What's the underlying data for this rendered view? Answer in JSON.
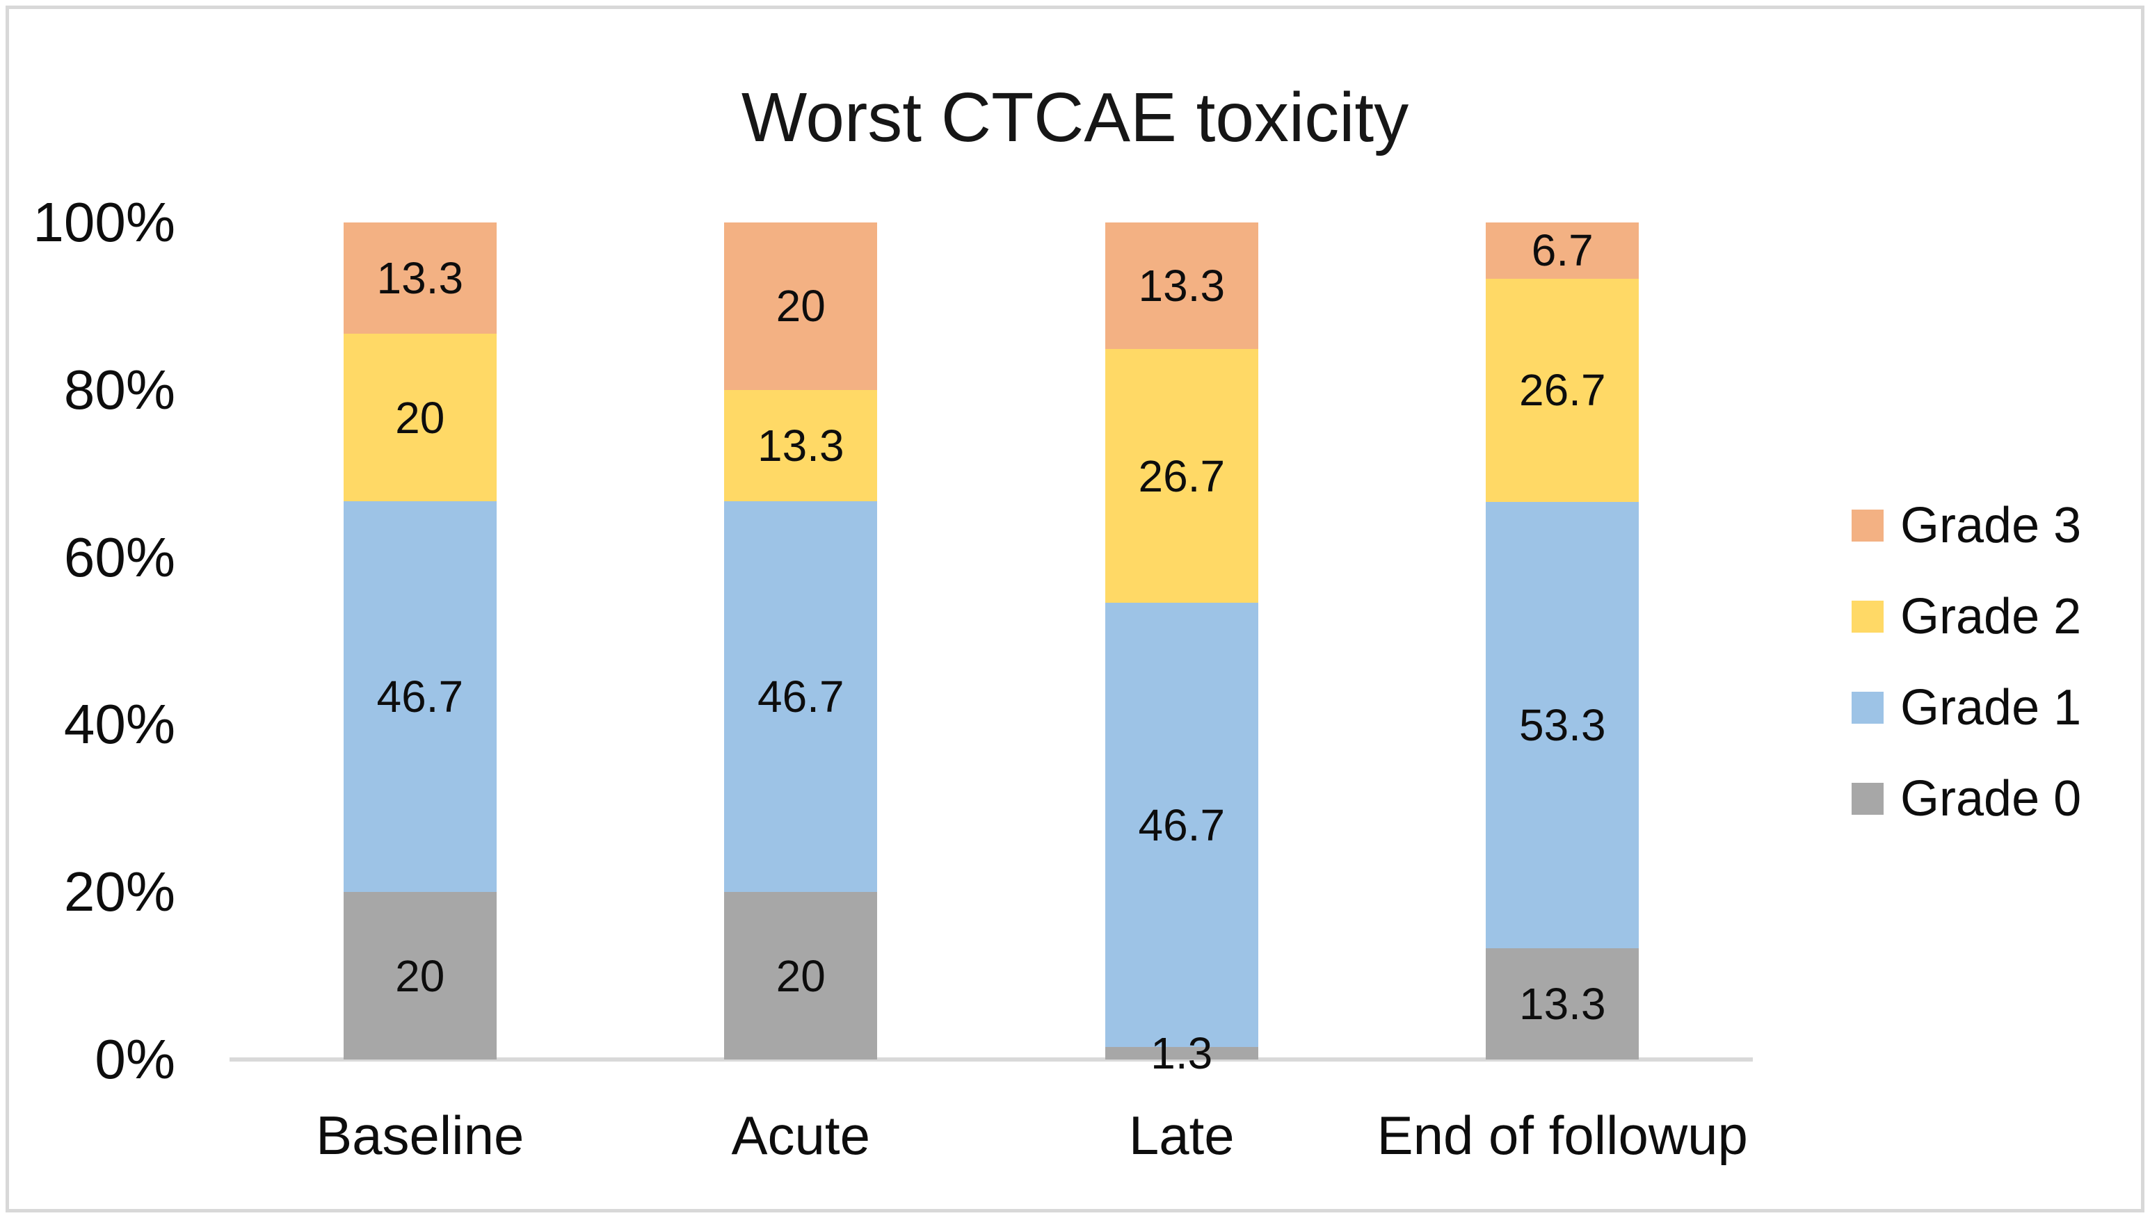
{
  "chart_data": {
    "type": "bar",
    "subtype": "stacked-100-percent",
    "title": "Worst CTCAE toxicity",
    "categories": [
      "Baseline",
      "Acute",
      "Late",
      "End of followup"
    ],
    "series": [
      {
        "name": "Grade 0",
        "color": "#A7A7A7",
        "values": [
          20,
          20,
          1.3,
          13.3
        ]
      },
      {
        "name": "Grade 1",
        "color": "#9DC3E6",
        "values": [
          46.7,
          46.7,
          46.7,
          53.3
        ]
      },
      {
        "name": "Grade 2",
        "color": "#FFD966",
        "values": [
          20,
          13.3,
          26.7,
          26.7
        ]
      },
      {
        "name": "Grade 3",
        "color": "#F3B183",
        "values": [
          13.3,
          20,
          13.3,
          6.7
        ]
      }
    ],
    "data_labels_shown": true,
    "y_axis": {
      "ticks": [
        "100%",
        "80%",
        "60%",
        "40%",
        "20%",
        "0%"
      ],
      "min": 0,
      "max": 100,
      "gridlines": false
    },
    "legend": {
      "position": "right",
      "entries": [
        "Grade 3",
        "Grade 2",
        "Grade 1",
        "Grade 0"
      ]
    },
    "colors": {
      "axis_line": "#D9D9D9",
      "frame_border": "#D8D8D8",
      "text": "#0d0d0d"
    }
  }
}
